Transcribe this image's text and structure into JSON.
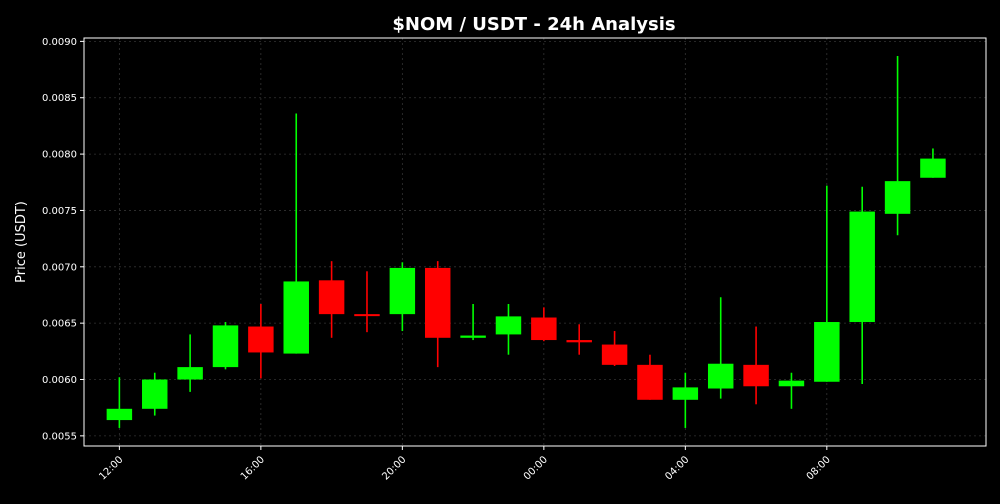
{
  "colors": {
    "background": "#000000",
    "plot_border": "#ffffff",
    "grid": "#333333",
    "text": "#ffffff",
    "up": "#00ff00",
    "down": "#ff0000"
  },
  "chart_data": {
    "type": "candlestick",
    "title": "$NOM / USDT - 24h Analysis",
    "xlabel": "",
    "ylabel": "Price (USDT)",
    "ylim": [
      0.00541,
      0.00903
    ],
    "xlim": [
      -1.0,
      24.5
    ],
    "grid": true,
    "x_ticks": [
      {
        "pos": 0,
        "label": "12:00"
      },
      {
        "pos": 4,
        "label": "16:00"
      },
      {
        "pos": 8,
        "label": "20:00"
      },
      {
        "pos": 12,
        "label": "00:00"
      },
      {
        "pos": 16,
        "label": "04:00"
      },
      {
        "pos": 20,
        "label": "08:00"
      }
    ],
    "y_ticks": [
      "0.0055",
      "0.0060",
      "0.0065",
      "0.0070",
      "0.0075",
      "0.0080",
      "0.0085",
      "0.0090"
    ],
    "candles": [
      {
        "time": "12:00",
        "open": 0.00564,
        "high": 0.00602,
        "low": 0.00557,
        "close": 0.00574
      },
      {
        "time": "13:00",
        "open": 0.00574,
        "high": 0.00606,
        "low": 0.00568,
        "close": 0.006
      },
      {
        "time": "14:00",
        "open": 0.006,
        "high": 0.0064,
        "low": 0.00589,
        "close": 0.00611
      },
      {
        "time": "15:00",
        "open": 0.00611,
        "high": 0.00651,
        "low": 0.00609,
        "close": 0.00648
      },
      {
        "time": "16:00",
        "open": 0.00647,
        "high": 0.00667,
        "low": 0.00601,
        "close": 0.00624
      },
      {
        "time": "17:00",
        "open": 0.00623,
        "high": 0.00836,
        "low": 0.00623,
        "close": 0.00687
      },
      {
        "time": "18:00",
        "open": 0.00688,
        "high": 0.00705,
        "low": 0.00637,
        "close": 0.00658
      },
      {
        "time": "19:00",
        "open": 0.00658,
        "high": 0.00696,
        "low": 0.00642,
        "close": 0.00657
      },
      {
        "time": "20:00",
        "open": 0.00658,
        "high": 0.00704,
        "low": 0.00643,
        "close": 0.00699
      },
      {
        "time": "21:00",
        "open": 0.00699,
        "high": 0.00705,
        "low": 0.00611,
        "close": 0.00637
      },
      {
        "time": "22:00",
        "open": 0.00637,
        "high": 0.00667,
        "low": 0.00635,
        "close": 0.00639
      },
      {
        "time": "23:00",
        "open": 0.0064,
        "high": 0.00667,
        "low": 0.00622,
        "close": 0.00656
      },
      {
        "time": "00:00",
        "open": 0.00655,
        "high": 0.00664,
        "low": 0.00634,
        "close": 0.00635
      },
      {
        "time": "01:00",
        "open": 0.00635,
        "high": 0.00649,
        "low": 0.00622,
        "close": 0.00633
      },
      {
        "time": "02:00",
        "open": 0.00631,
        "high": 0.00643,
        "low": 0.00612,
        "close": 0.00613
      },
      {
        "time": "03:00",
        "open": 0.00613,
        "high": 0.00622,
        "low": 0.00582,
        "close": 0.00582
      },
      {
        "time": "04:00",
        "open": 0.00582,
        "high": 0.00606,
        "low": 0.00557,
        "close": 0.00593
      },
      {
        "time": "05:00",
        "open": 0.00592,
        "high": 0.00673,
        "low": 0.00583,
        "close": 0.00614
      },
      {
        "time": "06:00",
        "open": 0.00613,
        "high": 0.00647,
        "low": 0.00578,
        "close": 0.00594
      },
      {
        "time": "07:00",
        "open": 0.00594,
        "high": 0.00606,
        "low": 0.00574,
        "close": 0.00599
      },
      {
        "time": "08:00",
        "open": 0.00598,
        "high": 0.00772,
        "low": 0.00598,
        "close": 0.00651
      },
      {
        "time": "09:00",
        "open": 0.00651,
        "high": 0.00771,
        "low": 0.00596,
        "close": 0.00749
      },
      {
        "time": "10:00",
        "open": 0.00747,
        "high": 0.00887,
        "low": 0.00728,
        "close": 0.00776
      },
      {
        "time": "11:00",
        "open": 0.00779,
        "high": 0.00805,
        "low": 0.00779,
        "close": 0.00796
      }
    ]
  }
}
